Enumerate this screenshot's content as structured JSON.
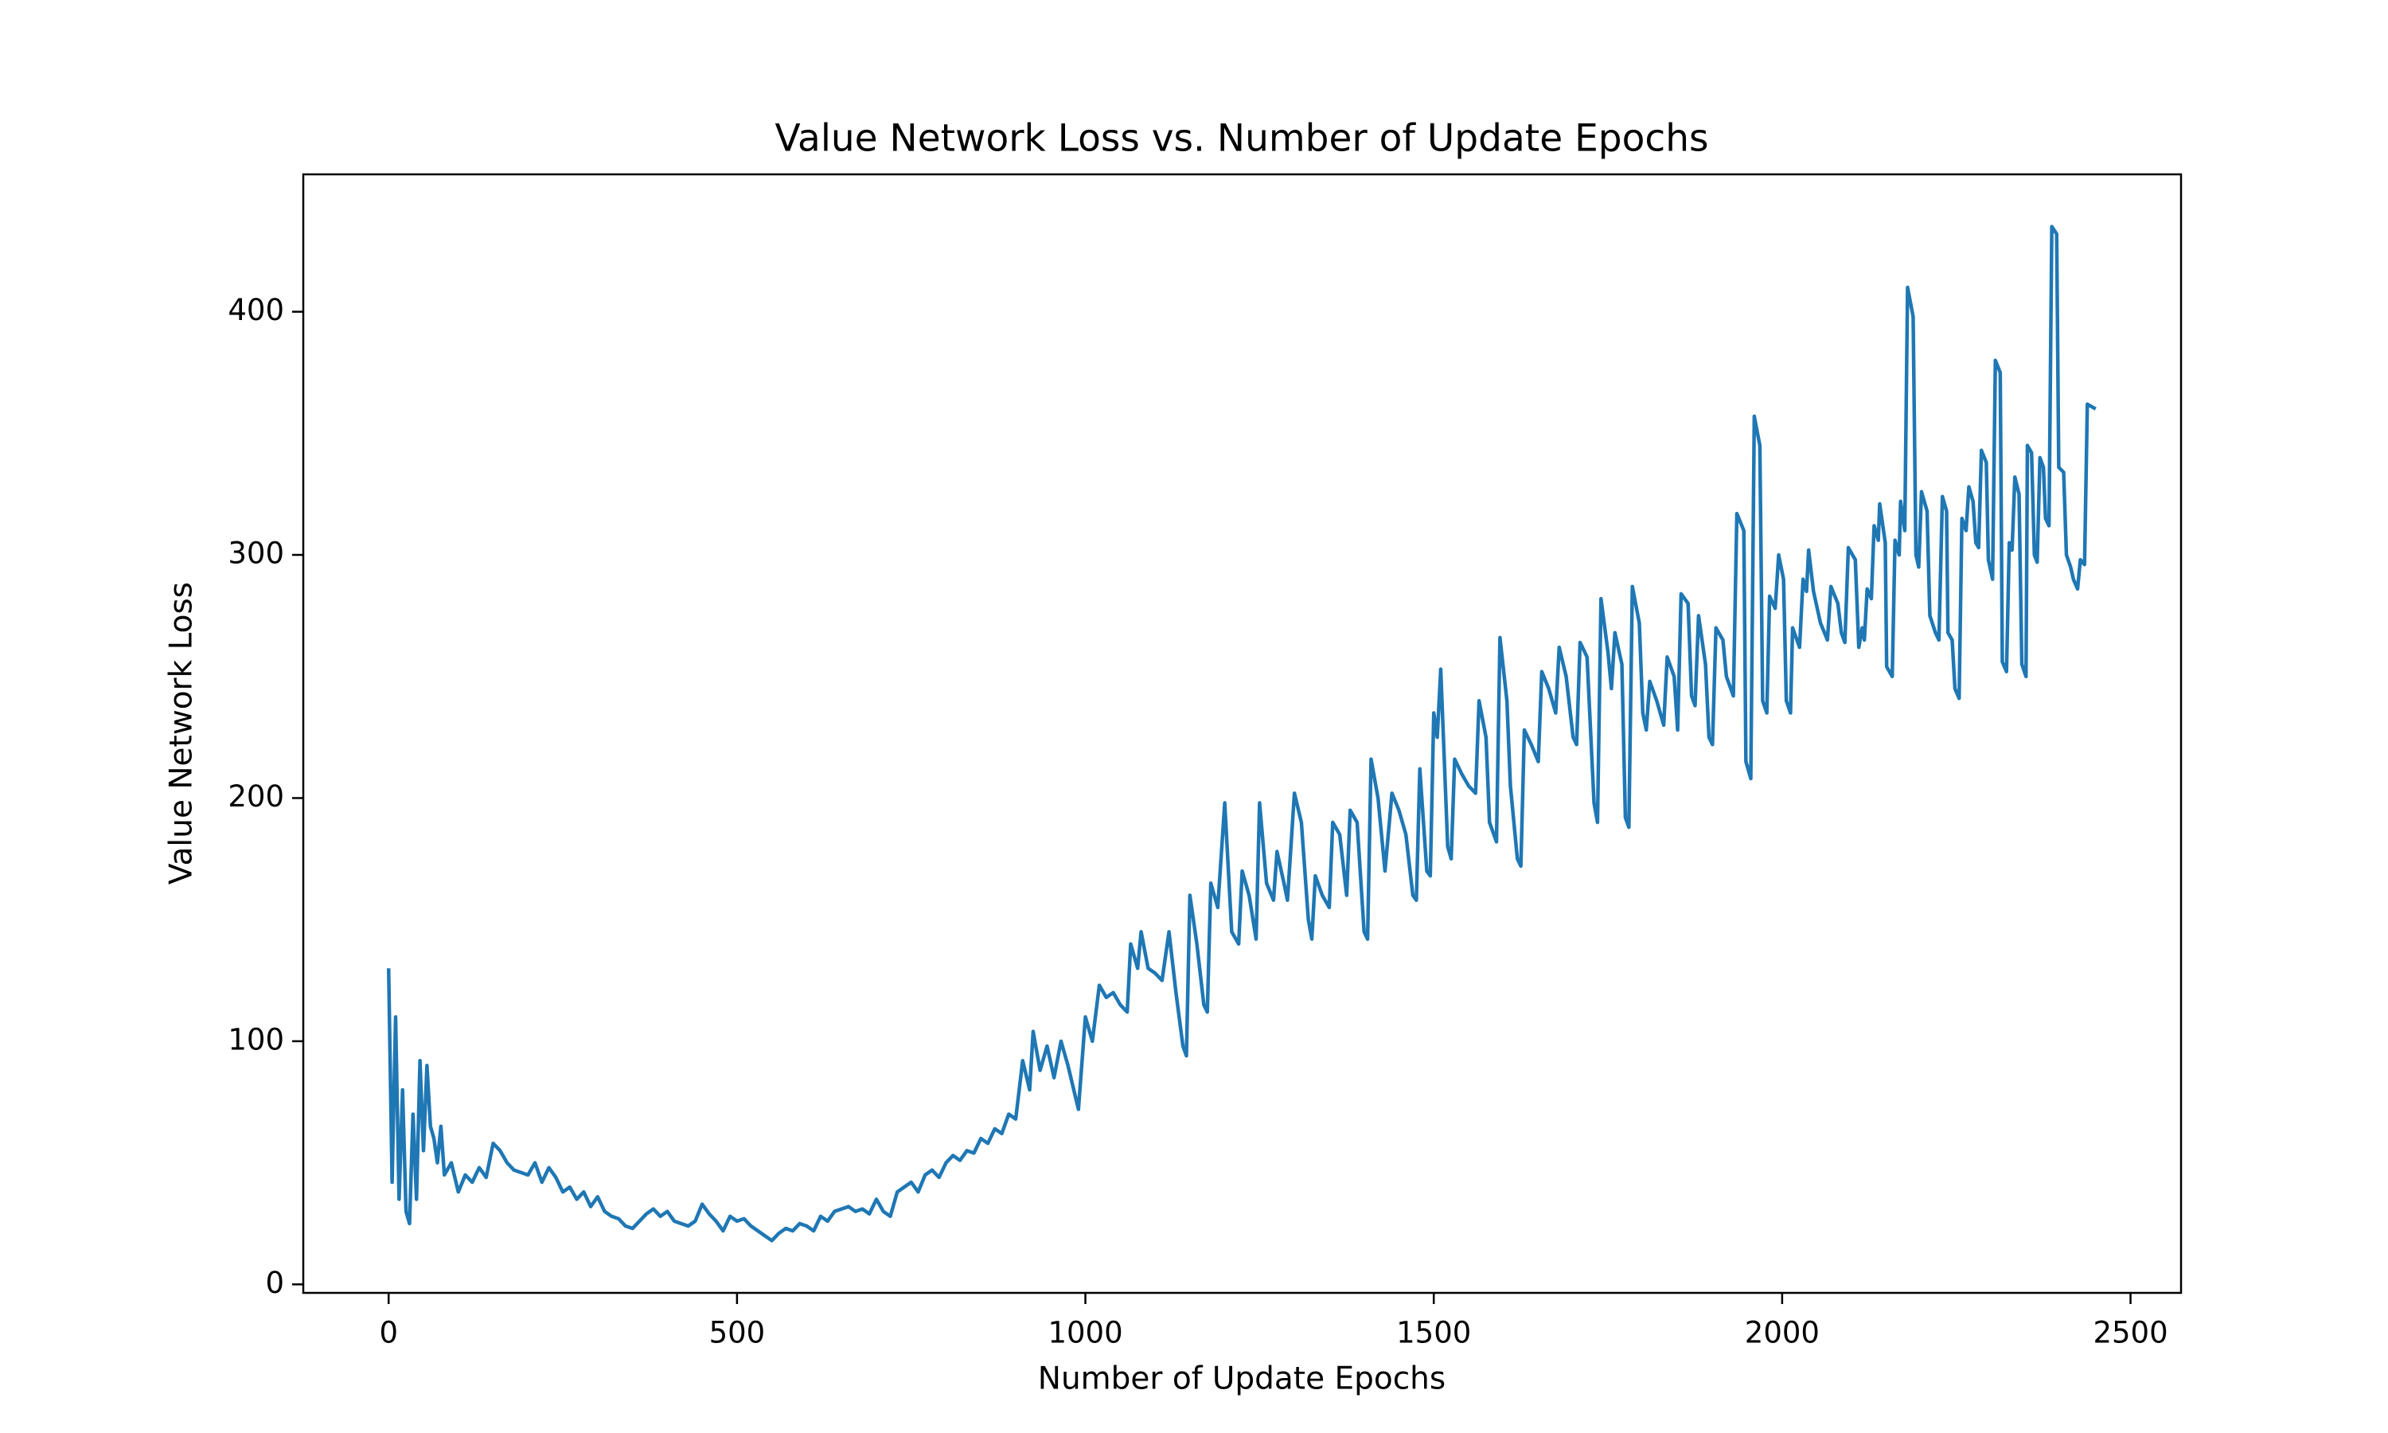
{
  "chart_data": {
    "type": "line",
    "title": "Value Network Loss vs. Number of Update Epochs",
    "x_label": "Number of Update Epochs",
    "y_label": "Value Network Loss",
    "x": [
      0,
      5,
      10,
      15,
      20,
      25,
      30,
      35,
      40,
      45,
      50,
      55,
      60,
      65,
      70,
      75,
      80,
      90,
      100,
      110,
      120,
      130,
      140,
      150,
      160,
      170,
      180,
      200,
      210,
      220,
      230,
      240,
      250,
      260,
      270,
      280,
      290,
      300,
      310,
      320,
      330,
      340,
      350,
      360,
      370,
      380,
      390,
      400,
      410,
      420,
      430,
      440,
      450,
      460,
      470,
      480,
      490,
      500,
      510,
      520,
      530,
      540,
      550,
      560,
      570,
      580,
      590,
      600,
      610,
      620,
      630,
      640,
      650,
      660,
      670,
      680,
      690,
      700,
      710,
      720,
      730,
      740,
      750,
      760,
      770,
      780,
      790,
      800,
      810,
      820,
      830,
      840,
      850,
      860,
      870,
      880,
      890,
      900,
      910,
      920,
      925,
      935,
      945,
      955,
      965,
      975,
      985,
      990,
      1000,
      1010,
      1020,
      1030,
      1040,
      1050,
      1060,
      1065,
      1075,
      1080,
      1090,
      1100,
      1110,
      1120,
      1130,
      1140,
      1145,
      1150,
      1160,
      1170,
      1175,
      1180,
      1190,
      1200,
      1210,
      1220,
      1225,
      1235,
      1245,
      1250,
      1260,
      1270,
      1275,
      1285,
      1290,
      1300,
      1310,
      1320,
      1325,
      1330,
      1340,
      1350,
      1355,
      1365,
      1375,
      1380,
      1390,
      1400,
      1405,
      1410,
      1420,
      1430,
      1440,
      1450,
      1460,
      1470,
      1475,
      1480,
      1490,
      1495,
      1500,
      1505,
      1510,
      1520,
      1525,
      1530,
      1540,
      1550,
      1560,
      1565,
      1575,
      1580,
      1590,
      1595,
      1605,
      1610,
      1620,
      1625,
      1630,
      1640,
      1650,
      1655,
      1665,
      1675,
      1680,
      1690,
      1700,
      1705,
      1710,
      1720,
      1730,
      1735,
      1740,
      1750,
      1755,
      1760,
      1770,
      1775,
      1780,
      1785,
      1795,
      1800,
      1805,
      1810,
      1820,
      1830,
      1835,
      1845,
      1850,
      1855,
      1865,
      1870,
      1875,
      1880,
      1890,
      1895,
      1900,
      1905,
      1915,
      1920,
      1930,
      1935,
      1945,
      1948,
      1955,
      1960,
      1968,
      1972,
      1978,
      1982,
      1990,
      1995,
      2002,
      2006,
      2012,
      2015,
      2025,
      2030,
      2035,
      2038,
      2045,
      2055,
      2065,
      2070,
      2080,
      2085,
      2090,
      2095,
      2105,
      2110,
      2115,
      2118,
      2122,
      2128,
      2132,
      2138,
      2140,
      2148,
      2150,
      2158,
      2162,
      2168,
      2170,
      2176,
      2180,
      2188,
      2192,
      2196,
      2200,
      2208,
      2212,
      2220,
      2225,
      2230,
      2236,
      2238,
      2244,
      2248,
      2254,
      2258,
      2264,
      2268,
      2274,
      2278,
      2282,
      2286,
      2293,
      2296,
      2302,
      2306,
      2313,
      2316,
      2322,
      2326,
      2330,
      2334,
      2340,
      2344,
      2350,
      2352,
      2358,
      2362,
      2366,
      2370,
      2375,
      2378,
      2383,
      2387,
      2394,
      2397,
      2404,
      2408,
      2414,
      2418,
      2424,
      2428,
      2434,
      2438,
      2450
    ],
    "series": [
      {
        "name": "Value Network Loss",
        "color": "#1f77b4",
        "values": [
          130,
          42,
          110,
          35,
          80,
          30,
          25,
          70,
          35,
          92,
          55,
          90,
          65,
          60,
          50,
          65,
          45,
          50,
          38,
          45,
          42,
          48,
          44,
          58,
          55,
          50,
          47,
          45,
          50,
          42,
          48,
          44,
          38,
          40,
          35,
          38,
          32,
          36,
          30,
          28,
          27,
          24,
          23,
          26,
          29,
          31,
          28,
          30,
          26,
          25,
          24,
          26,
          33,
          29,
          26,
          22,
          28,
          26,
          27,
          24,
          22,
          20,
          18,
          21,
          23,
          22,
          25,
          24,
          22,
          28,
          26,
          30,
          31,
          32,
          30,
          31,
          29,
          35,
          30,
          28,
          38,
          40,
          42,
          38,
          45,
          47,
          44,
          50,
          53,
          51,
          55,
          54,
          60,
          58,
          64,
          62,
          70,
          68,
          92,
          80,
          104,
          88,
          98,
          85,
          100,
          90,
          78,
          72,
          110,
          100,
          123,
          118,
          120,
          115,
          112,
          140,
          130,
          145,
          130,
          128,
          125,
          145,
          120,
          98,
          94,
          160,
          140,
          115,
          112,
          165,
          155,
          198,
          145,
          140,
          170,
          160,
          142,
          198,
          165,
          158,
          178,
          165,
          158,
          202,
          190,
          150,
          142,
          168,
          160,
          155,
          190,
          185,
          160,
          195,
          190,
          145,
          142,
          216,
          200,
          170,
          202,
          195,
          185,
          160,
          158,
          212,
          170,
          168,
          235,
          225,
          253,
          180,
          175,
          216,
          210,
          205,
          202,
          240,
          225,
          190,
          182,
          266,
          240,
          205,
          175,
          172,
          228,
          222,
          215,
          252,
          245,
          235,
          262,
          250,
          225,
          222,
          264,
          258,
          198,
          190,
          282,
          260,
          245,
          268,
          255,
          192,
          188,
          287,
          272,
          235,
          228,
          248,
          240,
          230,
          258,
          250,
          228,
          284,
          280,
          242,
          238,
          275,
          255,
          225,
          222,
          270,
          265,
          250,
          242,
          317,
          310,
          215,
          208,
          357,
          345,
          240,
          235,
          283,
          278,
          300,
          290,
          240,
          235,
          270,
          262,
          290,
          285,
          302,
          285,
          272,
          265,
          287,
          280,
          268,
          264,
          303,
          298,
          262,
          270,
          265,
          286,
          282,
          312,
          306,
          321,
          305,
          254,
          250,
          306,
          300,
          322,
          310,
          410,
          398,
          300,
          295,
          326,
          318,
          275,
          268,
          265,
          324,
          318,
          268,
          265,
          245,
          241,
          315,
          310,
          328,
          322,
          305,
          303,
          343,
          338,
          298,
          290,
          380,
          375,
          256,
          252,
          305,
          302,
          332,
          325,
          255,
          250,
          345,
          342,
          300,
          297,
          340,
          336,
          315,
          312,
          435,
          432,
          336,
          334,
          300,
          295,
          290,
          286,
          298,
          296,
          362,
          360
        ]
      }
    ],
    "xlim": [
      -122.5,
      2572.5
    ],
    "ylim": [
      -3.5,
      456.5
    ],
    "xticks": [
      0,
      500,
      1000,
      1500,
      2000,
      2500
    ],
    "yticks": [
      0,
      100,
      200,
      300,
      400
    ]
  }
}
